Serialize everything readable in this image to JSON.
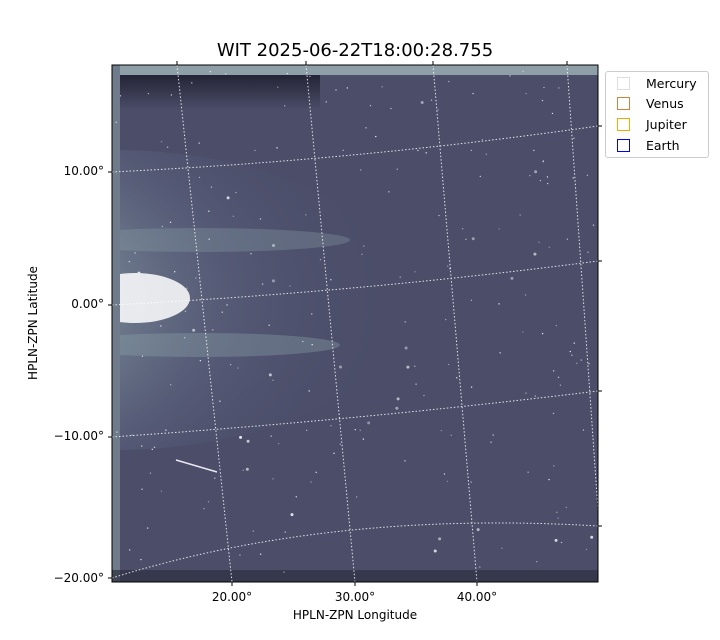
{
  "chart_data": {
    "type": "image",
    "title": "WIT 2025-06-22T18:00:28.755",
    "xlabel": "HPLN-ZPN Longitude",
    "ylabel": "HPLN-ZPN Latitude",
    "x_ticks": [
      "20.00°",
      "30.00°",
      "40.00°"
    ],
    "y_ticks": [
      "10.00°",
      "0.00°",
      "−10.00°",
      "−20.00°"
    ],
    "grid": true,
    "colormap": "bone",
    "legend_placement": "upper-right outside",
    "legend": [
      {
        "name": "Mercury",
        "color": "#dddddd"
      },
      {
        "name": "Venus",
        "color": "#d2813a"
      },
      {
        "name": "Jupiter",
        "color": "#ffa500"
      },
      {
        "name": "Earth",
        "color": "#0000ff"
      }
    ]
  }
}
